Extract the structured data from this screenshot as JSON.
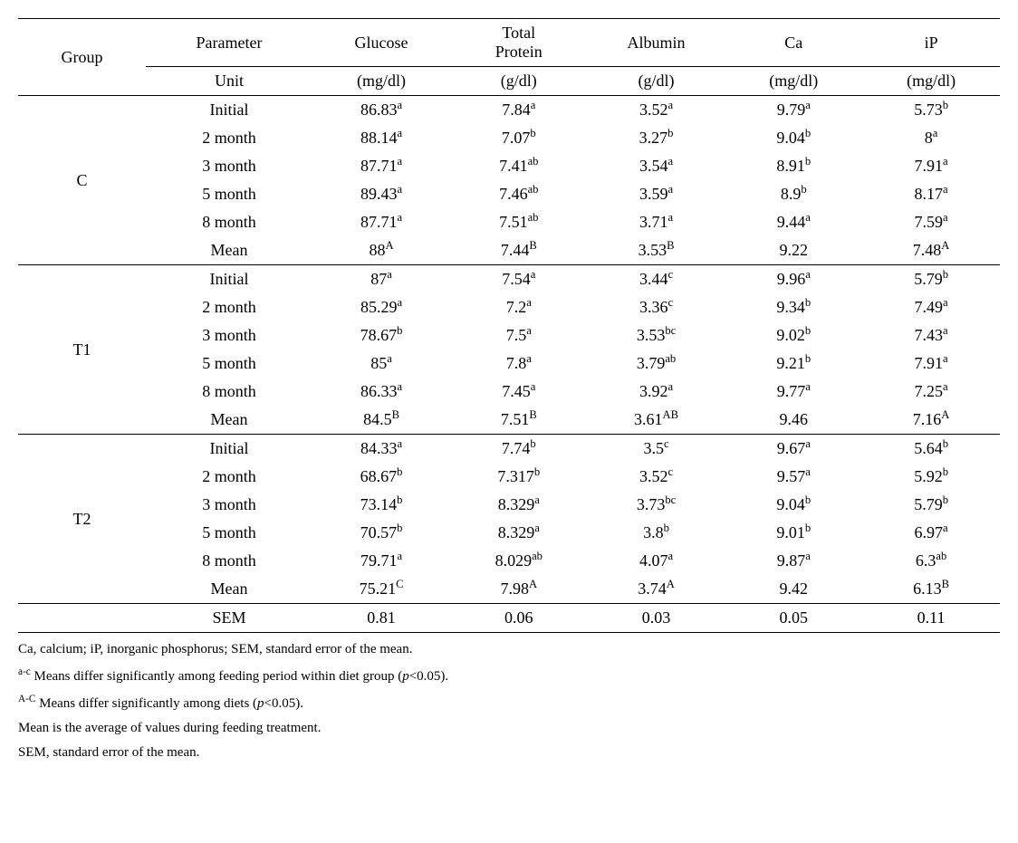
{
  "header": {
    "group": "Group",
    "parameter": "Parameter",
    "cols": [
      "Glucose",
      "Total\nProtein",
      "Albumin",
      "Ca",
      "iP"
    ],
    "unit_label": "Unit",
    "units": [
      "(mg/dl)",
      "(g/dl)",
      "(g/dl)",
      "(mg/dl)",
      "(mg/dl)"
    ]
  },
  "row_labels": [
    "Initial",
    "2 month",
    "3 month",
    "5 month",
    "8 month",
    "Mean"
  ],
  "groups": [
    {
      "name": "C",
      "rows": [
        [
          [
            "86.83",
            "a"
          ],
          [
            "7.84",
            "a"
          ],
          [
            "3.52",
            "a"
          ],
          [
            "9.79",
            "a"
          ],
          [
            "5.73",
            "b"
          ]
        ],
        [
          [
            "88.14",
            "a"
          ],
          [
            "7.07",
            "b"
          ],
          [
            "3.27",
            "b"
          ],
          [
            "9.04",
            "b"
          ],
          [
            "8",
            "a"
          ]
        ],
        [
          [
            "87.71",
            "a"
          ],
          [
            "7.41",
            "ab"
          ],
          [
            "3.54",
            "a"
          ],
          [
            "8.91",
            "b"
          ],
          [
            "7.91",
            "a"
          ]
        ],
        [
          [
            "89.43",
            "a"
          ],
          [
            "7.46",
            "ab"
          ],
          [
            "3.59",
            "a"
          ],
          [
            "8.9",
            "b"
          ],
          [
            "8.17",
            "a"
          ]
        ],
        [
          [
            "87.71",
            "a"
          ],
          [
            "7.51",
            "ab"
          ],
          [
            "3.71",
            "a"
          ],
          [
            "9.44",
            "a"
          ],
          [
            "7.59",
            "a"
          ]
        ],
        [
          [
            "88",
            "A"
          ],
          [
            "7.44",
            "B"
          ],
          [
            "3.53",
            "B"
          ],
          [
            "9.22",
            ""
          ],
          [
            "7.48",
            "A"
          ]
        ]
      ]
    },
    {
      "name": "T1",
      "rows": [
        [
          [
            "87",
            "a"
          ],
          [
            "7.54",
            "a"
          ],
          [
            "3.44",
            "c"
          ],
          [
            "9.96",
            "a"
          ],
          [
            "5.79",
            "b"
          ]
        ],
        [
          [
            "85.29",
            "a"
          ],
          [
            "7.2",
            "a"
          ],
          [
            "3.36",
            "c"
          ],
          [
            "9.34",
            "b"
          ],
          [
            "7.49",
            "a"
          ]
        ],
        [
          [
            "78.67",
            "b"
          ],
          [
            "7.5",
            "a"
          ],
          [
            "3.53",
            "bc"
          ],
          [
            "9.02",
            "b"
          ],
          [
            "7.43",
            "a"
          ]
        ],
        [
          [
            "85",
            "a"
          ],
          [
            "7.8",
            "a"
          ],
          [
            "3.79",
            "ab"
          ],
          [
            "9.21",
            "b"
          ],
          [
            "7.91",
            "a"
          ]
        ],
        [
          [
            "86.33",
            "a"
          ],
          [
            "7.45",
            "a"
          ],
          [
            "3.92",
            "a"
          ],
          [
            "9.77",
            "a"
          ],
          [
            "7.25",
            "a"
          ]
        ],
        [
          [
            "84.5",
            "B"
          ],
          [
            "7.51",
            "B"
          ],
          [
            "3.61",
            "AB"
          ],
          [
            "9.46",
            ""
          ],
          [
            "7.16",
            "A"
          ]
        ]
      ]
    },
    {
      "name": "T2",
      "rows": [
        [
          [
            "84.33",
            "a"
          ],
          [
            "7.74",
            "b"
          ],
          [
            "3.5",
            "c"
          ],
          [
            "9.67",
            "a"
          ],
          [
            "5.64",
            "b"
          ]
        ],
        [
          [
            "68.67",
            "b"
          ],
          [
            "7.317",
            "b"
          ],
          [
            "3.52",
            "c"
          ],
          [
            "9.57",
            "a"
          ],
          [
            "5.92",
            "b"
          ]
        ],
        [
          [
            "73.14",
            "b"
          ],
          [
            "8.329",
            "a"
          ],
          [
            "3.73",
            "bc"
          ],
          [
            "9.04",
            "b"
          ],
          [
            "5.79",
            "b"
          ]
        ],
        [
          [
            "70.57",
            "b"
          ],
          [
            "8.329",
            "a"
          ],
          [
            "3.8",
            "b"
          ],
          [
            "9.01",
            "b"
          ],
          [
            "6.97",
            "a"
          ]
        ],
        [
          [
            "79.71",
            "a"
          ],
          [
            "8.029",
            "ab"
          ],
          [
            "4.07",
            "a"
          ],
          [
            "9.87",
            "a"
          ],
          [
            "6.3",
            "ab"
          ]
        ],
        [
          [
            "75.21",
            "C"
          ],
          [
            "7.98",
            "A"
          ],
          [
            "3.74",
            "A"
          ],
          [
            "9.42",
            ""
          ],
          [
            "6.13",
            "B"
          ]
        ]
      ]
    }
  ],
  "sem": {
    "label": "SEM",
    "values": [
      "0.81",
      "0.06",
      "0.03",
      "0.05",
      "0.11"
    ]
  },
  "footnotes": {
    "f1": "Ca, calcium; iP, inorganic phosphorus; SEM, standard error of the mean.",
    "f2sup": "a-c",
    "f2": " Means differ significantly among feeding period within diet group (",
    "f2p": "p",
    "f2after": "<0.05).",
    "f3sup": "A-C",
    "f3": " Means differ significantly among diets (",
    "f3p": "p",
    "f3after": "<0.05).",
    "f4": "Mean is the average of values during feeding treatment.",
    "f5": "SEM, standard error of the mean."
  }
}
